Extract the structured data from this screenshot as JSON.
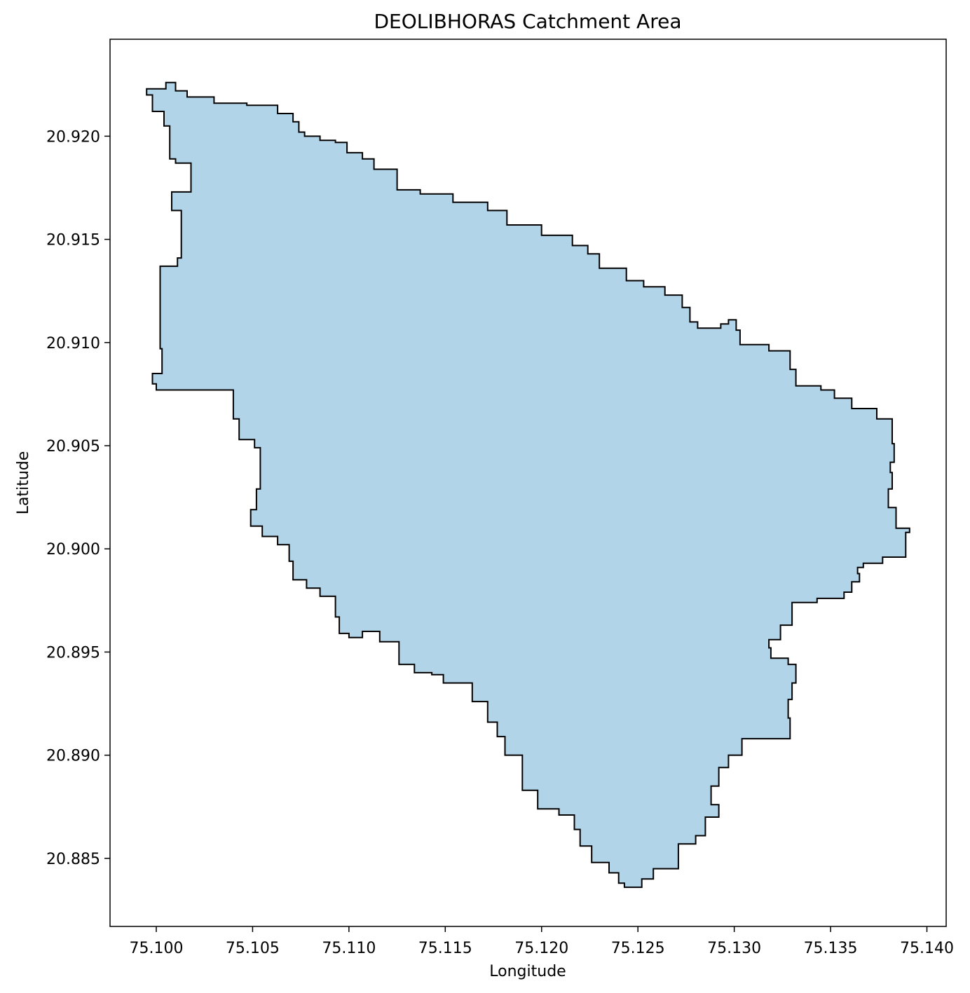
{
  "title": "DEOLIBHORAS Catchment Area",
  "x_axis": {
    "label": "Longitude",
    "ticks": [
      "75.100",
      "75.105",
      "75.110",
      "75.115",
      "75.120",
      "75.125",
      "75.130",
      "75.135",
      "75.140"
    ]
  },
  "y_axis": {
    "label": "Latitude",
    "ticks": [
      "20.885",
      "20.890",
      "20.895",
      "20.900",
      "20.905",
      "20.910",
      "20.915",
      "20.920"
    ]
  },
  "map_data": {
    "type": "polygon",
    "fill_color": "#b2d4e8",
    "edge_color": "#000000",
    "xlim": [
      75.0976,
      75.141
    ],
    "ylim": [
      20.8817,
      20.9247
    ],
    "boundary": [
      [
        75.0995,
        20.9223
      ],
      [
        75.1005,
        20.9226
      ],
      [
        75.101,
        20.9222
      ],
      [
        75.1016,
        20.9219
      ],
      [
        75.103,
        20.9216
      ],
      [
        75.1047,
        20.9215
      ],
      [
        75.1063,
        20.9211
      ],
      [
        75.1071,
        20.9207
      ],
      [
        75.1074,
        20.9202
      ],
      [
        75.1077,
        20.92
      ],
      [
        75.1085,
        20.9198
      ],
      [
        75.1093,
        20.9197
      ],
      [
        75.1099,
        20.9192
      ],
      [
        75.1107,
        20.9189
      ],
      [
        75.1113,
        20.9184
      ],
      [
        75.1125,
        20.9174
      ],
      [
        75.1137,
        20.9172
      ],
      [
        75.1154,
        20.9168
      ],
      [
        75.1172,
        20.9164
      ],
      [
        75.1182,
        20.9157
      ],
      [
        75.12,
        20.9152
      ],
      [
        75.1216,
        20.9147
      ],
      [
        75.1224,
        20.9143
      ],
      [
        75.123,
        20.9136
      ],
      [
        75.1244,
        20.913
      ],
      [
        75.1253,
        20.9127
      ],
      [
        75.1264,
        20.9123
      ],
      [
        75.1273,
        20.9117
      ],
      [
        75.1277,
        20.911
      ],
      [
        75.1281,
        20.9107
      ],
      [
        75.1293,
        20.9109
      ],
      [
        75.1297,
        20.9111
      ],
      [
        75.1301,
        20.9106
      ],
      [
        75.1303,
        20.9099
      ],
      [
        75.1318,
        20.9096
      ],
      [
        75.1329,
        20.9087
      ],
      [
        75.1332,
        20.9079
      ],
      [
        75.1345,
        20.9077
      ],
      [
        75.1352,
        20.9073
      ],
      [
        75.1361,
        20.9068
      ],
      [
        75.1374,
        20.9063
      ],
      [
        75.1382,
        20.9051
      ],
      [
        75.1383,
        20.9042
      ],
      [
        75.1381,
        20.9037
      ],
      [
        75.1382,
        20.9029
      ],
      [
        75.138,
        20.902
      ],
      [
        75.1384,
        20.901
      ],
      [
        75.1391,
        20.9008
      ],
      [
        75.1389,
        20.8996
      ],
      [
        75.1377,
        20.8993
      ],
      [
        75.1367,
        20.8991
      ],
      [
        75.1364,
        20.8988
      ],
      [
        75.1365,
        20.8984
      ],
      [
        75.1361,
        20.8979
      ],
      [
        75.1357,
        20.8976
      ],
      [
        75.1343,
        20.8974
      ],
      [
        75.1332,
        20.8974
      ],
      [
        75.133,
        20.8963
      ],
      [
        75.1324,
        20.8956
      ],
      [
        75.1318,
        20.8952
      ],
      [
        75.1319,
        20.8947
      ],
      [
        75.1328,
        20.8944
      ],
      [
        75.1332,
        20.8935
      ],
      [
        75.133,
        20.8927
      ],
      [
        75.1328,
        20.8918
      ],
      [
        75.1329,
        20.8908
      ],
      [
        75.1317,
        20.8908
      ],
      [
        75.1304,
        20.89
      ],
      [
        75.1297,
        20.8894
      ],
      [
        75.1292,
        20.8885
      ],
      [
        75.1288,
        20.8876
      ],
      [
        75.1292,
        20.887
      ],
      [
        75.1285,
        20.8861
      ],
      [
        75.128,
        20.8857
      ],
      [
        75.1271,
        20.8845
      ],
      [
        75.1258,
        20.884
      ],
      [
        75.1252,
        20.8836
      ],
      [
        75.1243,
        20.8838
      ],
      [
        75.124,
        20.8843
      ],
      [
        75.1235,
        20.8848
      ],
      [
        75.1226,
        20.8856
      ],
      [
        75.122,
        20.8864
      ],
      [
        75.1217,
        20.8871
      ],
      [
        75.1209,
        20.8874
      ],
      [
        75.1198,
        20.8883
      ],
      [
        75.119,
        20.89
      ],
      [
        75.1181,
        20.8909
      ],
      [
        75.1177,
        20.8916
      ],
      [
        75.1172,
        20.8926
      ],
      [
        75.1164,
        20.8935
      ],
      [
        75.1149,
        20.8939
      ],
      [
        75.1143,
        20.894
      ],
      [
        75.1134,
        20.8944
      ],
      [
        75.1126,
        20.8955
      ],
      [
        75.1116,
        20.896
      ],
      [
        75.1107,
        20.8957
      ],
      [
        75.11,
        20.8959
      ],
      [
        75.1095,
        20.8967
      ],
      [
        75.1093,
        20.8977
      ],
      [
        75.1085,
        20.8981
      ],
      [
        75.1078,
        20.8985
      ],
      [
        75.1071,
        20.8994
      ],
      [
        75.1069,
        20.9002
      ],
      [
        75.1063,
        20.9006
      ],
      [
        75.1055,
        20.9011
      ],
      [
        75.1049,
        20.9019
      ],
      [
        75.1052,
        20.9029
      ],
      [
        75.1054,
        20.9049
      ],
      [
        75.1051,
        20.9053
      ],
      [
        75.1043,
        20.9063
      ],
      [
        75.104,
        20.9077
      ],
      [
        75.103,
        20.9077
      ],
      [
        75.1009,
        20.9077
      ],
      [
        75.1,
        20.908
      ],
      [
        75.0998,
        20.9085
      ],
      [
        75.1003,
        20.9097
      ],
      [
        75.1002,
        20.9129
      ],
      [
        75.1002,
        20.9137
      ],
      [
        75.1011,
        20.9141
      ],
      [
        75.1013,
        20.9151
      ],
      [
        75.1013,
        20.9164
      ],
      [
        75.1008,
        20.9173
      ],
      [
        75.1017,
        20.9173
      ],
      [
        75.1018,
        20.9187
      ],
      [
        75.101,
        20.9189
      ],
      [
        75.1007,
        20.9205
      ],
      [
        75.1004,
        20.9212
      ],
      [
        75.0998,
        20.922
      ]
    ]
  }
}
